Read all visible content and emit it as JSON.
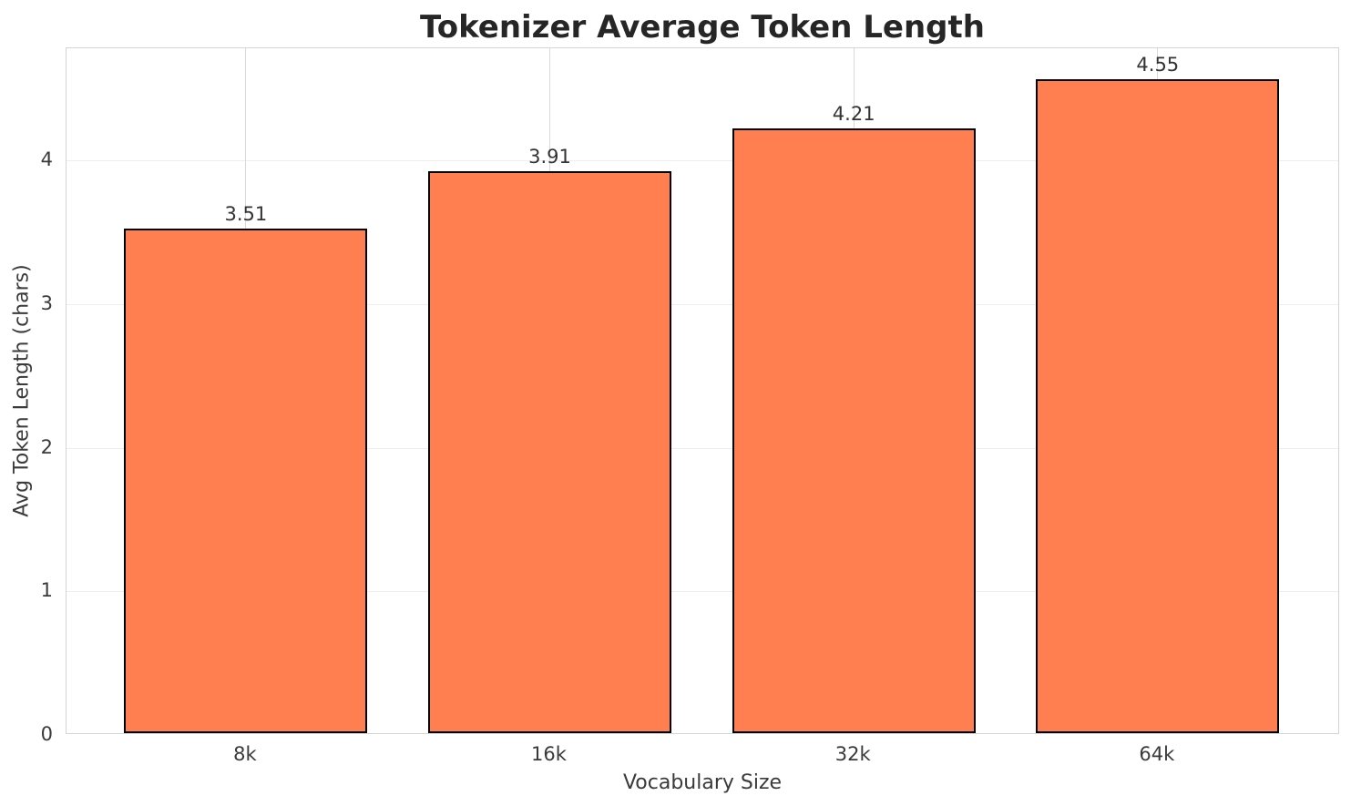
{
  "chart_data": {
    "type": "bar",
    "title": "Tokenizer Average Token Length",
    "xlabel": "Vocabulary Size",
    "ylabel": "Avg Token Length (chars)",
    "categories": [
      "8k",
      "16k",
      "32k",
      "64k"
    ],
    "values": [
      3.51,
      3.91,
      4.21,
      4.55
    ],
    "value_label_decimals": 2,
    "yticks": [
      0,
      1,
      2,
      3,
      4
    ],
    "ylim": [
      0,
      4.78
    ],
    "xlim": [
      -0.59,
      3.6
    ],
    "bar_width_units": 0.8,
    "grid": true,
    "legend": null,
    "colors": {
      "bar_fill": "#ff7f50",
      "bar_edge": "#000000",
      "hgrid": "#eeeeee",
      "vgrid": "#d9d9d9",
      "spine": "#d4d4d4",
      "title_text": "#262626",
      "tick_text": "#3a3a3a",
      "value_text": "#333333",
      "figure_bg": "#ffffff"
    }
  }
}
